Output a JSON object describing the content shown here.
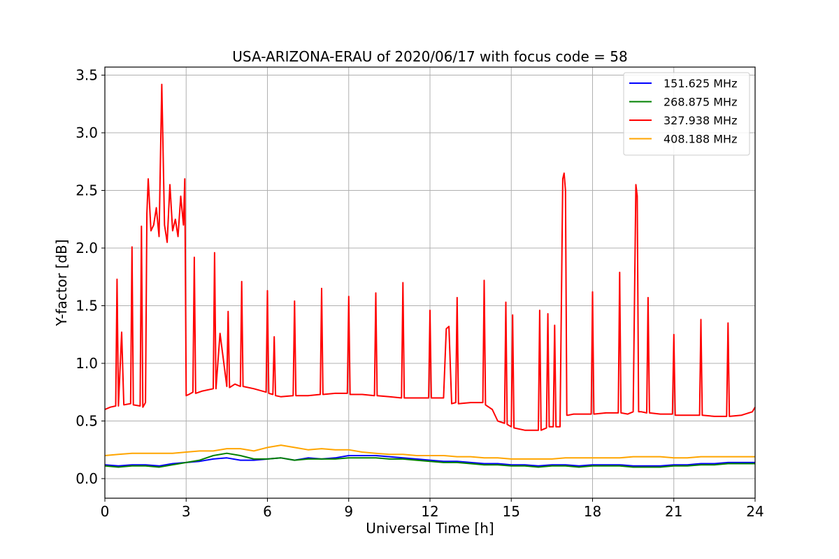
{
  "chart_data": {
    "type": "line",
    "title": "USA-ARIZONA-ERAU of 2020/06/17 with focus code = 58",
    "xlabel": "Universal Time [h]",
    "ylabel": "Y-factor [dB]",
    "xlim": [
      0,
      24
    ],
    "ylim": [
      -0.17,
      3.57
    ],
    "xticks": [
      0,
      3,
      6,
      9,
      12,
      15,
      18,
      21,
      24
    ],
    "xtick_labels": [
      "0",
      "3",
      "6",
      "9",
      "12",
      "15",
      "18",
      "21",
      "24"
    ],
    "yticks": [
      0.0,
      0.5,
      1.0,
      1.5,
      2.0,
      2.5,
      3.0,
      3.5
    ],
    "ytick_labels": [
      "0.0",
      "0.5",
      "1.0",
      "1.5",
      "2.0",
      "2.5",
      "3.0",
      "3.5"
    ],
    "grid": true,
    "legend_position": "top-right",
    "series": [
      {
        "name": "151.625 MHz",
        "color": "#0000ff",
        "x": [
          0,
          0.5,
          1,
          1.5,
          2,
          2.5,
          3,
          3.5,
          4,
          4.5,
          5,
          5.5,
          6,
          6.5,
          7,
          7.5,
          8,
          8.5,
          9,
          9.5,
          10,
          10.5,
          11,
          11.5,
          12,
          12.5,
          13,
          13.5,
          14,
          14.5,
          15,
          15.5,
          16,
          16.5,
          17,
          17.5,
          18,
          18.5,
          19,
          19.5,
          20,
          20.5,
          21,
          21.5,
          22,
          22.5,
          23,
          23.5,
          24
        ],
        "y": [
          0.12,
          0.11,
          0.12,
          0.12,
          0.11,
          0.13,
          0.14,
          0.15,
          0.17,
          0.18,
          0.16,
          0.16,
          0.17,
          0.18,
          0.16,
          0.18,
          0.17,
          0.18,
          0.2,
          0.2,
          0.2,
          0.19,
          0.18,
          0.17,
          0.16,
          0.15,
          0.15,
          0.14,
          0.13,
          0.13,
          0.12,
          0.12,
          0.11,
          0.12,
          0.12,
          0.11,
          0.12,
          0.12,
          0.12,
          0.11,
          0.11,
          0.11,
          0.12,
          0.12,
          0.13,
          0.13,
          0.14,
          0.14,
          0.14
        ]
      },
      {
        "name": "268.875 MHz",
        "color": "#008000",
        "x": [
          0,
          0.5,
          1,
          1.5,
          2,
          2.5,
          3,
          3.5,
          4,
          4.5,
          5,
          5.5,
          6,
          6.5,
          7,
          7.5,
          8,
          8.5,
          9,
          9.5,
          10,
          10.5,
          11,
          11.5,
          12,
          12.5,
          13,
          13.5,
          14,
          14.5,
          15,
          15.5,
          16,
          16.5,
          17,
          17.5,
          18,
          18.5,
          19,
          19.5,
          20,
          20.5,
          21,
          21.5,
          22,
          22.5,
          23,
          23.5,
          24
        ],
        "y": [
          0.11,
          0.1,
          0.11,
          0.11,
          0.1,
          0.12,
          0.14,
          0.16,
          0.2,
          0.22,
          0.2,
          0.17,
          0.17,
          0.18,
          0.16,
          0.17,
          0.17,
          0.17,
          0.18,
          0.18,
          0.18,
          0.17,
          0.17,
          0.16,
          0.15,
          0.14,
          0.14,
          0.13,
          0.12,
          0.12,
          0.11,
          0.11,
          0.1,
          0.11,
          0.11,
          0.1,
          0.11,
          0.11,
          0.11,
          0.1,
          0.1,
          0.1,
          0.11,
          0.11,
          0.12,
          0.12,
          0.13,
          0.13,
          0.13
        ]
      },
      {
        "name": "327.938 MHz",
        "color": "#ff0000",
        "x": [
          0,
          0.2,
          0.4,
          0.45,
          0.5,
          0.62,
          0.7,
          0.95,
          1.0,
          1.05,
          1.3,
          1.35,
          1.4,
          1.5,
          1.55,
          1.6,
          1.7,
          1.8,
          1.9,
          2.0,
          2.1,
          2.2,
          2.3,
          2.4,
          2.5,
          2.6,
          2.7,
          2.8,
          2.9,
          2.95,
          3.0,
          3.1,
          3.25,
          3.3,
          3.35,
          3.6,
          4.0,
          4.05,
          4.1,
          4.25,
          4.5,
          4.55,
          4.6,
          4.8,
          5.0,
          5.05,
          5.1,
          5.5,
          5.95,
          6.0,
          6.05,
          6.2,
          6.25,
          6.3,
          6.5,
          6.95,
          7.0,
          7.05,
          7.5,
          7.95,
          8.0,
          8.05,
          8.5,
          8.95,
          9.0,
          9.05,
          9.5,
          9.95,
          10.0,
          10.05,
          10.5,
          10.95,
          11.0,
          11.05,
          11.5,
          11.95,
          12.0,
          12.05,
          12.3,
          12.5,
          12.6,
          12.7,
          12.8,
          12.95,
          13.0,
          13.05,
          13.5,
          13.95,
          14.0,
          14.05,
          14.3,
          14.5,
          14.75,
          14.8,
          14.85,
          15.0,
          15.05,
          15.1,
          15.5,
          16.0,
          16.05,
          16.1,
          16.3,
          16.35,
          16.4,
          16.55,
          16.6,
          16.65,
          16.8,
          16.9,
          16.95,
          17.0,
          17.05,
          17.1,
          17.3,
          17.95,
          18.0,
          18.05,
          18.5,
          18.95,
          19.0,
          19.05,
          19.3,
          19.5,
          19.55,
          19.6,
          19.65,
          19.7,
          19.8,
          20.0,
          20.05,
          20.1,
          20.5,
          20.95,
          21.0,
          21.05,
          21.5,
          21.95,
          22.0,
          22.05,
          22.5,
          22.95,
          23.0,
          23.05,
          23.5,
          23.9,
          24.0
        ],
        "y": [
          0.6,
          0.62,
          0.63,
          1.73,
          0.63,
          1.27,
          0.64,
          0.65,
          2.01,
          0.64,
          0.63,
          2.19,
          0.62,
          0.66,
          2.3,
          2.6,
          2.15,
          2.2,
          2.35,
          2.1,
          3.42,
          2.2,
          2.05,
          2.55,
          2.15,
          2.25,
          2.1,
          2.45,
          2.2,
          2.6,
          0.72,
          0.73,
          0.75,
          1.92,
          0.74,
          0.76,
          0.78,
          1.96,
          0.78,
          1.26,
          0.8,
          1.45,
          0.79,
          0.82,
          0.8,
          1.71,
          0.8,
          0.78,
          0.75,
          1.63,
          0.74,
          0.73,
          1.23,
          0.72,
          0.71,
          0.72,
          1.54,
          0.72,
          0.72,
          0.73,
          1.65,
          0.73,
          0.74,
          0.74,
          1.58,
          0.73,
          0.73,
          0.72,
          1.61,
          0.72,
          0.71,
          0.7,
          1.7,
          0.7,
          0.7,
          0.7,
          1.46,
          0.7,
          0.7,
          0.7,
          1.3,
          1.32,
          0.65,
          0.66,
          1.57,
          0.65,
          0.66,
          0.66,
          1.72,
          0.64,
          0.6,
          0.5,
          0.48,
          1.53,
          0.47,
          0.45,
          1.42,
          0.44,
          0.42,
          0.42,
          1.46,
          0.42,
          0.44,
          1.43,
          0.45,
          0.45,
          1.33,
          0.45,
          0.45,
          2.6,
          2.65,
          2.5,
          0.55,
          0.55,
          0.56,
          0.56,
          1.62,
          0.56,
          0.57,
          0.57,
          1.79,
          0.57,
          0.56,
          0.58,
          1.6,
          2.55,
          2.45,
          0.58,
          0.58,
          0.57,
          1.57,
          0.57,
          0.56,
          0.56,
          1.25,
          0.55,
          0.55,
          0.55,
          1.38,
          0.55,
          0.54,
          0.54,
          1.35,
          0.54,
          0.55,
          0.58,
          0.62
        ]
      },
      {
        "name": "408.188 MHz",
        "color": "#ffa500",
        "x": [
          0,
          0.5,
          1,
          1.5,
          2,
          2.5,
          3,
          3.5,
          4,
          4.5,
          5,
          5.5,
          6,
          6.5,
          7,
          7.5,
          8,
          8.5,
          9,
          9.5,
          10,
          10.5,
          11,
          11.5,
          12,
          12.5,
          13,
          13.5,
          14,
          14.5,
          15,
          15.5,
          16,
          16.5,
          17,
          17.5,
          18,
          18.5,
          19,
          19.5,
          20,
          20.5,
          21,
          21.5,
          22,
          22.5,
          23,
          23.5,
          24
        ],
        "y": [
          0.2,
          0.21,
          0.22,
          0.22,
          0.22,
          0.22,
          0.23,
          0.24,
          0.24,
          0.26,
          0.26,
          0.24,
          0.27,
          0.29,
          0.27,
          0.25,
          0.26,
          0.25,
          0.25,
          0.23,
          0.22,
          0.21,
          0.21,
          0.2,
          0.2,
          0.2,
          0.19,
          0.19,
          0.18,
          0.18,
          0.17,
          0.17,
          0.17,
          0.17,
          0.18,
          0.18,
          0.18,
          0.18,
          0.18,
          0.19,
          0.19,
          0.19,
          0.18,
          0.18,
          0.19,
          0.19,
          0.19,
          0.19,
          0.19
        ]
      }
    ]
  }
}
